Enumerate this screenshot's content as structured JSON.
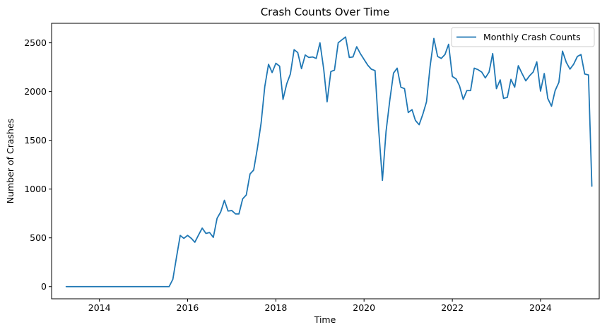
{
  "chart_data": {
    "type": "line",
    "title": "Crash Counts Over Time",
    "xlabel": "Time",
    "ylabel": "Number of Crashes",
    "xlim": [
      "2012-12-01",
      "2025-05-01"
    ],
    "ylim": [
      -125,
      2700
    ],
    "xticks": [
      {
        "date": "2014-01-01",
        "label": "2014"
      },
      {
        "date": "2016-01-01",
        "label": "2016"
      },
      {
        "date": "2018-01-01",
        "label": "2018"
      },
      {
        "date": "2020-01-01",
        "label": "2020"
      },
      {
        "date": "2022-01-01",
        "label": "2022"
      },
      {
        "date": "2024-01-01",
        "label": "2024"
      }
    ],
    "yticks": [
      0,
      500,
      1000,
      1500,
      2000,
      2500
    ],
    "legend_position": "top-right",
    "grid": false,
    "color": "#1f77b4",
    "series": [
      {
        "name": "Monthly Crash Counts",
        "points": [
          [
            "2013-04",
            0
          ],
          [
            "2013-05",
            0
          ],
          [
            "2013-06",
            0
          ],
          [
            "2013-07",
            0
          ],
          [
            "2013-08",
            0
          ],
          [
            "2013-09",
            0
          ],
          [
            "2013-10",
            0
          ],
          [
            "2013-11",
            0
          ],
          [
            "2013-12",
            0
          ],
          [
            "2014-01",
            0
          ],
          [
            "2014-02",
            0
          ],
          [
            "2014-03",
            0
          ],
          [
            "2014-04",
            0
          ],
          [
            "2014-05",
            0
          ],
          [
            "2014-06",
            0
          ],
          [
            "2014-07",
            0
          ],
          [
            "2014-08",
            0
          ],
          [
            "2014-09",
            0
          ],
          [
            "2014-10",
            0
          ],
          [
            "2014-11",
            0
          ],
          [
            "2014-12",
            0
          ],
          [
            "2015-01",
            0
          ],
          [
            "2015-02",
            0
          ],
          [
            "2015-03",
            0
          ],
          [
            "2015-04",
            0
          ],
          [
            "2015-05",
            0
          ],
          [
            "2015-06",
            0
          ],
          [
            "2015-07",
            0
          ],
          [
            "2015-08",
            0
          ],
          [
            "2015-09",
            75
          ],
          [
            "2015-10",
            300
          ],
          [
            "2015-11",
            525
          ],
          [
            "2015-12",
            495
          ],
          [
            "2016-01",
            525
          ],
          [
            "2016-02",
            495
          ],
          [
            "2016-03",
            455
          ],
          [
            "2016-04",
            530
          ],
          [
            "2016-05",
            600
          ],
          [
            "2016-06",
            545
          ],
          [
            "2016-07",
            555
          ],
          [
            "2016-08",
            505
          ],
          [
            "2016-09",
            700
          ],
          [
            "2016-10",
            765
          ],
          [
            "2016-11",
            885
          ],
          [
            "2016-12",
            775
          ],
          [
            "2017-01",
            780
          ],
          [
            "2017-02",
            745
          ],
          [
            "2017-03",
            745
          ],
          [
            "2017-04",
            900
          ],
          [
            "2017-05",
            940
          ],
          [
            "2017-06",
            1155
          ],
          [
            "2017-07",
            1195
          ],
          [
            "2017-08",
            1420
          ],
          [
            "2017-09",
            1680
          ],
          [
            "2017-10",
            2050
          ],
          [
            "2017-11",
            2280
          ],
          [
            "2017-12",
            2195
          ],
          [
            "2018-01",
            2290
          ],
          [
            "2018-02",
            2260
          ],
          [
            "2018-03",
            1920
          ],
          [
            "2018-04",
            2080
          ],
          [
            "2018-05",
            2180
          ],
          [
            "2018-06",
            2430
          ],
          [
            "2018-07",
            2400
          ],
          [
            "2018-08",
            2235
          ],
          [
            "2018-09",
            2375
          ],
          [
            "2018-10",
            2350
          ],
          [
            "2018-11",
            2355
          ],
          [
            "2018-12",
            2340
          ],
          [
            "2019-01",
            2500
          ],
          [
            "2019-02",
            2230
          ],
          [
            "2019-03",
            1895
          ],
          [
            "2019-04",
            2205
          ],
          [
            "2019-05",
            2220
          ],
          [
            "2019-06",
            2500
          ],
          [
            "2019-07",
            2530
          ],
          [
            "2019-08",
            2560
          ],
          [
            "2019-09",
            2350
          ],
          [
            "2019-10",
            2355
          ],
          [
            "2019-11",
            2460
          ],
          [
            "2019-12",
            2390
          ],
          [
            "2020-01",
            2330
          ],
          [
            "2020-02",
            2270
          ],
          [
            "2020-03",
            2230
          ],
          [
            "2020-04",
            2215
          ],
          [
            "2020-05",
            1610
          ],
          [
            "2020-06",
            1090
          ],
          [
            "2020-07",
            1590
          ],
          [
            "2020-08",
            1910
          ],
          [
            "2020-09",
            2190
          ],
          [
            "2020-10",
            2240
          ],
          [
            "2020-11",
            2045
          ],
          [
            "2020-12",
            2030
          ],
          [
            "2021-01",
            1785
          ],
          [
            "2021-02",
            1815
          ],
          [
            "2021-03",
            1705
          ],
          [
            "2021-04",
            1660
          ],
          [
            "2021-05",
            1765
          ],
          [
            "2021-06",
            1895
          ],
          [
            "2021-07",
            2260
          ],
          [
            "2021-08",
            2545
          ],
          [
            "2021-09",
            2360
          ],
          [
            "2021-10",
            2340
          ],
          [
            "2021-11",
            2380
          ],
          [
            "2021-12",
            2485
          ],
          [
            "2022-01",
            2155
          ],
          [
            "2022-02",
            2130
          ],
          [
            "2022-03",
            2060
          ],
          [
            "2022-04",
            1920
          ],
          [
            "2022-05",
            2010
          ],
          [
            "2022-06",
            2010
          ],
          [
            "2022-07",
            2240
          ],
          [
            "2022-08",
            2225
          ],
          [
            "2022-09",
            2200
          ],
          [
            "2022-10",
            2140
          ],
          [
            "2022-11",
            2200
          ],
          [
            "2022-12",
            2390
          ],
          [
            "2023-01",
            2030
          ],
          [
            "2023-02",
            2120
          ],
          [
            "2023-03",
            1930
          ],
          [
            "2023-04",
            1940
          ],
          [
            "2023-05",
            2125
          ],
          [
            "2023-06",
            2045
          ],
          [
            "2023-07",
            2265
          ],
          [
            "2023-08",
            2185
          ],
          [
            "2023-09",
            2110
          ],
          [
            "2023-10",
            2160
          ],
          [
            "2023-11",
            2200
          ],
          [
            "2023-12",
            2305
          ],
          [
            "2024-01",
            2005
          ],
          [
            "2024-02",
            2185
          ],
          [
            "2024-03",
            1930
          ],
          [
            "2024-04",
            1850
          ],
          [
            "2024-05",
            2010
          ],
          [
            "2024-06",
            2095
          ],
          [
            "2024-07",
            2415
          ],
          [
            "2024-08",
            2300
          ],
          [
            "2024-09",
            2230
          ],
          [
            "2024-10",
            2280
          ],
          [
            "2024-11",
            2360
          ],
          [
            "2024-12",
            2380
          ],
          [
            "2025-01",
            2180
          ],
          [
            "2025-02",
            2170
          ],
          [
            "2025-03",
            1030
          ]
        ]
      }
    ]
  }
}
